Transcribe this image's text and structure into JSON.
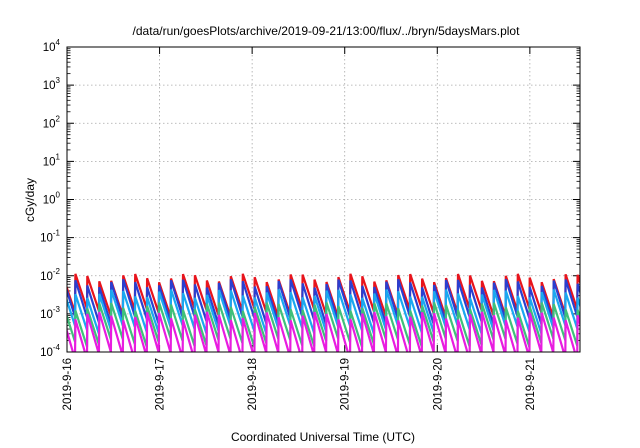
{
  "chart_data": {
    "type": "line",
    "title": "/data/run/goesPlots/archive/2019-09-21/13:00/flux/../bryn/5daysMars.plot",
    "xlabel": "Coordinated Universal Time (UTC)",
    "ylabel": "cGy/day",
    "log_y": true,
    "grid": true,
    "ylim": [
      0.0001,
      10000
    ],
    "xlim": [
      "2019-09-16 00:00",
      "2019-09-21 13:00"
    ],
    "x_ticks": [
      "2019-9-16",
      "2019-9-17",
      "2019-9-18",
      "2019-9-19",
      "2019-9-20",
      "2019-9-21"
    ],
    "y_ticks": [
      {
        "base": "10",
        "exp": "4"
      },
      {
        "base": "10",
        "exp": "3"
      },
      {
        "base": "10",
        "exp": "2"
      },
      {
        "base": "10",
        "exp": "1"
      },
      {
        "base": "10",
        "exp": "0"
      },
      {
        "base": "10",
        "exp": "-1"
      },
      {
        "base": "10",
        "exp": "-2"
      },
      {
        "base": "10",
        "exp": "-3"
      },
      {
        "base": "10",
        "exp": "-4"
      }
    ],
    "sawtooth_period_hours": 3.1,
    "series": [
      {
        "color": "#e8141c",
        "peak": 0.009,
        "trough": 0.0011
      },
      {
        "color": "#2a3fd0",
        "peak": 0.0065,
        "trough": 0.0007
      },
      {
        "color": "#1aa8f0",
        "peak": 0.0035,
        "trough": 0.0004
      },
      {
        "color": "#3fc07a",
        "peak": 0.0016,
        "trough": 0.00018
      },
      {
        "color": "#e81ce0",
        "peak": 0.0009,
        "trough": 8e-05
      }
    ]
  }
}
